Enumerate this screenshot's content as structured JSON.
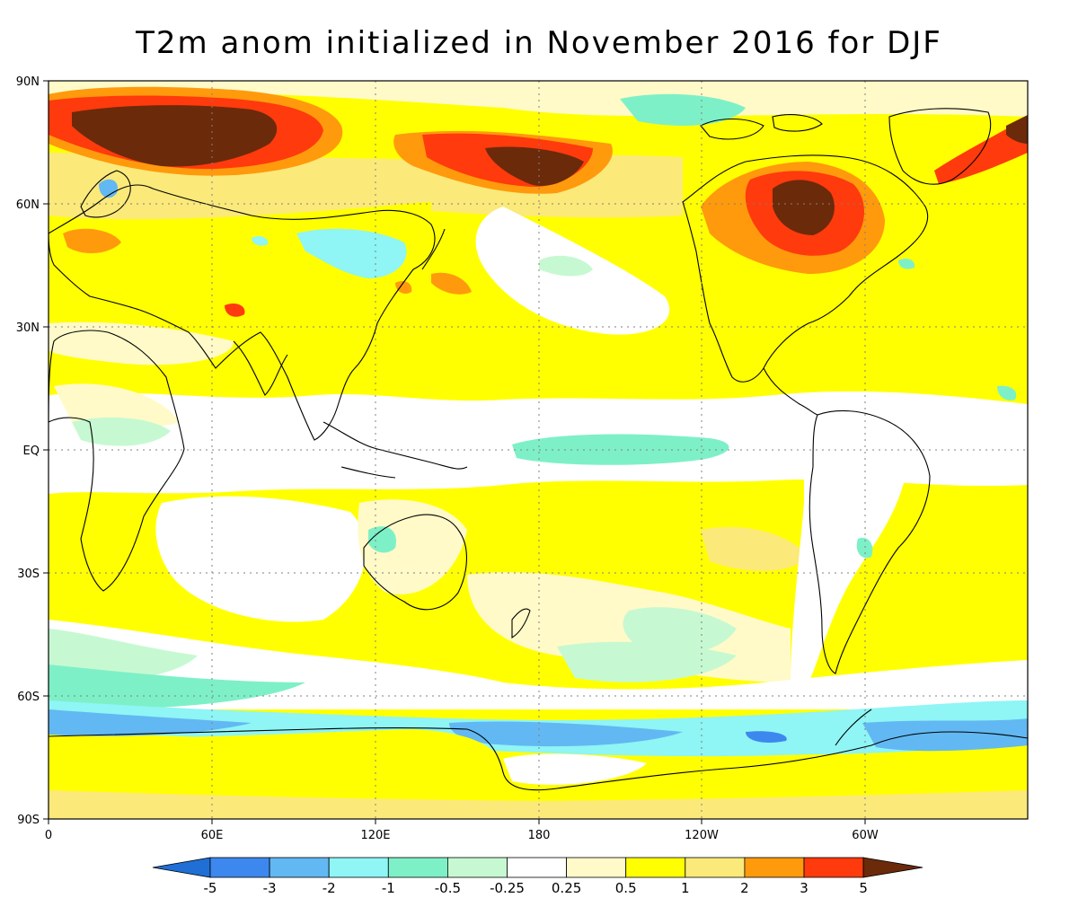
{
  "title": "T2m anom initialized in November 2016 for DJF",
  "lat_labels": [
    "90N",
    "60N",
    "30N",
    "30S",
    "60S",
    "90S"
  ],
  "eq_label": "EQ",
  "lon_labels": [
    "0",
    "60E",
    "120E",
    "180",
    "120W",
    "60W"
  ],
  "colorbar": {
    "labels": [
      "-5",
      "-3",
      "-2",
      "-1",
      "-0.5",
      "-0.25",
      "0.25",
      "0.5",
      "1",
      "2",
      "3",
      "5"
    ],
    "colors": [
      "#1f6fd6",
      "#3d88ef",
      "#62b8f2",
      "#8ff5f5",
      "#7ef0c7",
      "#c6f9d2",
      "#ffffff",
      "#fffac8",
      "#ffff00",
      "#fbe97a",
      "#ff9a0c",
      "#ff3a0c",
      "#6b2a0a"
    ]
  },
  "palette": {
    "ocean_bg": "#fffac8",
    "warm_1": "#ffff00",
    "warm_2": "#fbe97a",
    "warm_3": "#ff9a0c",
    "warm_4": "#ff3a0c",
    "warm_5": "#6b2a0a",
    "neutral": "#ffffff",
    "cool_1": "#c6f9d2",
    "cool_2": "#7ef0c7",
    "cool_3": "#8ff5f5",
    "cool_4": "#62b8f2"
  }
}
